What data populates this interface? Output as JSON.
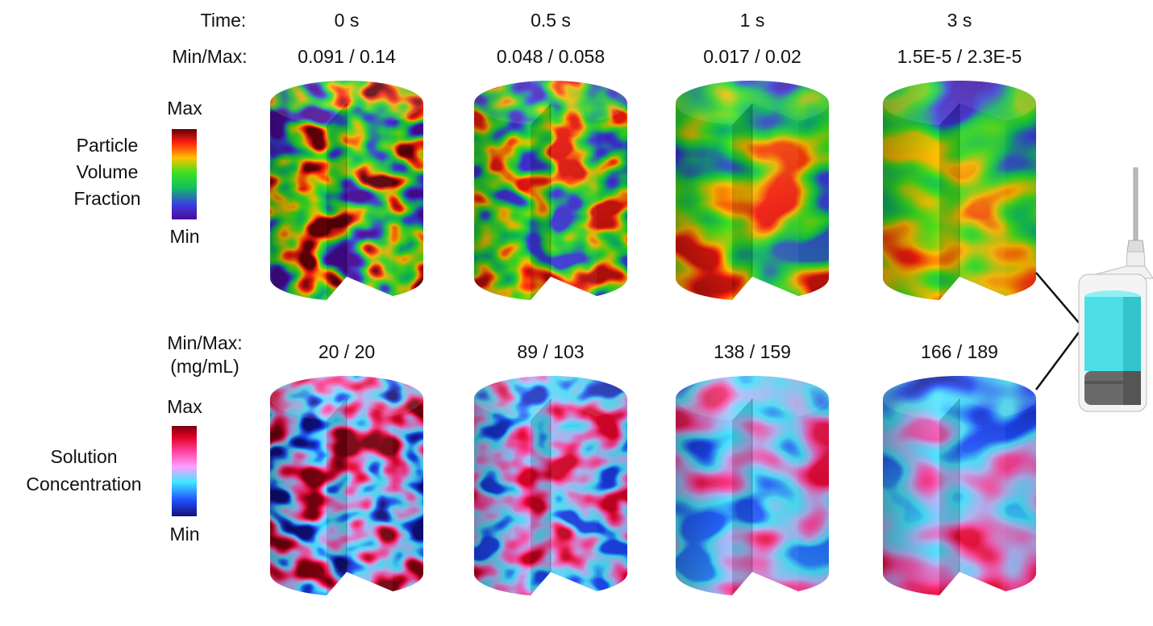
{
  "header": {
    "time_label": "Time:",
    "minmax_label": "Min/Max:"
  },
  "columns": [
    {
      "time": "0 s",
      "particle_minmax": "0.091 / 0.14",
      "solution_minmax": "20 / 20"
    },
    {
      "time": "0.5 s",
      "particle_minmax": "0.048 / 0.058",
      "solution_minmax": "89 / 103"
    },
    {
      "time": "1 s",
      "particle_minmax": "0.017 / 0.02",
      "solution_minmax": "138 / 159"
    },
    {
      "time": "3 s",
      "particle_minmax": "1.5E-5 / 2.3E-5",
      "solution_minmax": "166 / 189"
    }
  ],
  "particle_legend": {
    "title_lines": [
      "Particle",
      "Volume",
      "Fraction"
    ],
    "max": "Max",
    "min": "Min"
  },
  "solution_legend": {
    "minmax_label_lines": [
      "Min/Max:",
      "(mg/mL)"
    ],
    "title_lines": [
      "Solution",
      "Concentration"
    ],
    "max": "Max",
    "min": "Min"
  }
}
